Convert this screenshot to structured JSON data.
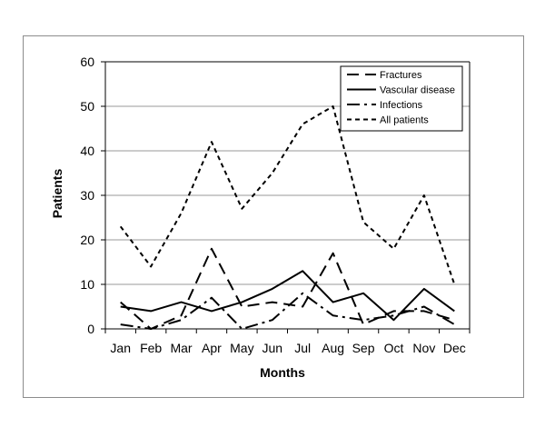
{
  "chart_data": {
    "type": "line",
    "title": "",
    "xlabel": "Months",
    "ylabel": "Patients",
    "ylim": [
      0,
      60
    ],
    "yticks": [
      "0",
      "10",
      "20",
      "30",
      "40",
      "50",
      "60"
    ],
    "categories": [
      "Jan",
      "Feb",
      "Mar",
      "Apr",
      "May",
      "Jun",
      "Jul",
      "Aug",
      "Sep",
      "Oct",
      "Nov",
      "Dec"
    ],
    "grid": true,
    "legend_position": "top-right",
    "series": [
      {
        "name": "Fractures",
        "dash": "long-dash",
        "values": [
          6,
          0,
          3,
          18,
          5,
          6,
          5,
          17,
          1,
          4,
          4,
          2
        ]
      },
      {
        "name": "Vascular disease",
        "dash": "solid",
        "values": [
          5,
          4,
          6,
          4,
          6,
          9,
          13,
          6,
          8,
          2,
          9,
          4
        ]
      },
      {
        "name": "Infections",
        "dash": "dash-dot",
        "values": [
          1,
          0,
          2,
          7,
          0,
          2,
          8,
          3,
          2,
          3,
          5,
          1
        ]
      },
      {
        "name": "All patients",
        "dash": "short-dash",
        "values": [
          23,
          14,
          26,
          42,
          27,
          35,
          46,
          50,
          24,
          18,
          30,
          10
        ]
      }
    ]
  }
}
